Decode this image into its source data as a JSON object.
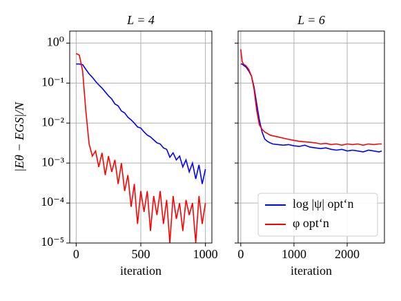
{
  "chart_data": [
    {
      "type": "line",
      "title": "L = 4",
      "xlabel": "iteration",
      "ylabel": "|Eθ − EGS|/N",
      "log_y": true,
      "grid": true,
      "x": [
        0,
        25,
        50,
        75,
        100,
        125,
        150,
        175,
        200,
        225,
        250,
        275,
        300,
        325,
        350,
        375,
        400,
        425,
        450,
        475,
        500,
        525,
        550,
        575,
        600,
        625,
        650,
        675,
        700,
        725,
        750,
        775,
        800,
        825,
        850,
        875,
        900,
        925,
        950,
        975,
        1000
      ],
      "series": [
        {
          "name": "log |ψ| opt‘n",
          "color": "#0000ff",
          "values": [
            0.3,
            0.3,
            0.29,
            0.22,
            0.17,
            0.14,
            0.11,
            0.09,
            0.075,
            0.06,
            0.048,
            0.04,
            0.03,
            0.027,
            0.02,
            0.018,
            0.014,
            0.012,
            0.01,
            0.008,
            0.0075,
            0.006,
            0.005,
            0.0045,
            0.0038,
            0.0032,
            0.003,
            0.0024,
            0.0022,
            0.0014,
            0.0018,
            0.0012,
            0.0015,
            0.0008,
            0.0012,
            0.0006,
            0.001,
            0.0004,
            0.0009,
            0.0003,
            0.0007
          ]
        },
        {
          "name": "φ opt‘n",
          "color": "#ff0000",
          "values": [
            0.55,
            0.5,
            0.2,
            0.02,
            0.003,
            0.0015,
            0.002,
            0.0008,
            0.0018,
            0.0005,
            0.0015,
            0.0006,
            0.0012,
            0.0003,
            0.001,
            0.0002,
            0.0005,
            8e-05,
            0.0003,
            3e-05,
            0.0002,
            6e-05,
            0.0002,
            2e-05,
            0.00015,
            5e-05,
            0.0002,
            3e-05,
            0.00012,
            1e-05,
            0.00015,
            4e-05,
            0.0001,
            2e-05,
            0.00012,
            5e-05,
            0.0001,
            1e-05,
            0.00015,
            3e-05,
            0.0001
          ]
        }
      ],
      "xlim": [
        -50,
        1050
      ],
      "xticks": [
        0,
        500,
        1000
      ],
      "ylim": [
        1e-05,
        2
      ],
      "yticks": [
        {
          "value": 1e-05,
          "label": "10⁻⁵"
        },
        {
          "value": 0.0001,
          "label": "10⁻⁴"
        },
        {
          "value": 0.001,
          "label": "10⁻³"
        },
        {
          "value": 0.01,
          "label": "10⁻²"
        },
        {
          "value": 0.1,
          "label": "10⁻¹"
        },
        {
          "value": 1,
          "label": "10⁰"
        }
      ]
    },
    {
      "type": "line",
      "title": "L = 6",
      "xlabel": "iteration",
      "log_y": true,
      "grid": true,
      "legend": "lower right",
      "x": [
        0,
        25,
        50,
        100,
        150,
        200,
        250,
        300,
        350,
        400,
        450,
        500,
        550,
        600,
        700,
        800,
        900,
        1000,
        1100,
        1200,
        1300,
        1400,
        1500,
        1600,
        1700,
        1800,
        1900,
        2000,
        2100,
        2200,
        2300,
        2400,
        2500,
        2600,
        2650
      ],
      "series": [
        {
          "name": "log |ψ| opt‘n",
          "color": "#0000ff",
          "values": [
            0.3,
            0.3,
            0.28,
            0.25,
            0.2,
            0.15,
            0.08,
            0.03,
            0.012,
            0.006,
            0.004,
            0.0035,
            0.0032,
            0.003,
            0.0029,
            0.0028,
            0.0029,
            0.0027,
            0.0026,
            0.0028,
            0.0025,
            0.0024,
            0.0023,
            0.0024,
            0.0022,
            0.0021,
            0.0022,
            0.002,
            0.0021,
            0.002,
            0.0019,
            0.0021,
            0.002,
            0.0019,
            0.002
          ]
        },
        {
          "name": "φ opt‘n",
          "color": "#ff0000",
          "values": [
            0.7,
            0.35,
            0.3,
            0.27,
            0.22,
            0.15,
            0.07,
            0.02,
            0.009,
            0.007,
            0.006,
            0.0055,
            0.005,
            0.0048,
            0.0045,
            0.0042,
            0.0039,
            0.0037,
            0.0035,
            0.0034,
            0.0033,
            0.0032,
            0.003,
            0.0031,
            0.0029,
            0.003,
            0.0028,
            0.003,
            0.0029,
            0.003,
            0.0028,
            0.003,
            0.0029,
            0.003,
            0.003
          ]
        }
      ],
      "xlim": [
        -50,
        2700
      ],
      "xticks": [
        0,
        1000,
        2000
      ],
      "ylim": [
        1e-05,
        2
      ],
      "yticks": [
        1e-05,
        0.0001,
        0.001,
        0.01,
        0.1,
        1
      ]
    }
  ]
}
